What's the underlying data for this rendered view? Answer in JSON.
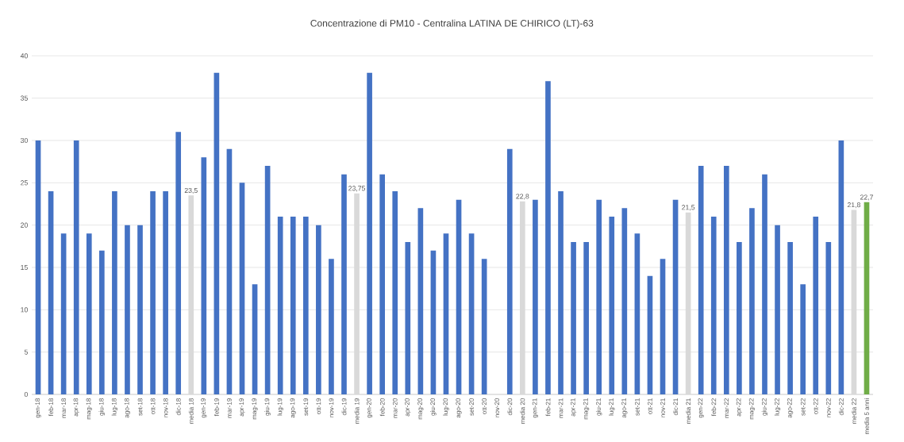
{
  "chart_data": {
    "type": "bar",
    "title": "Concentrazione di PM10 - Centralina LATINA DE CHIRICO (LT)-63",
    "categories": [
      "gen-18",
      "feb-18",
      "mar-18",
      "apr-18",
      "mag-18",
      "giu-18",
      "lug-18",
      "ago-18",
      "set-18",
      "ott-18",
      "nov-18",
      "dic-18",
      "media 18",
      "gen-19",
      "feb-19",
      "mar-19",
      "apr-19",
      "mag-19",
      "giu-19",
      "lug-19",
      "ago-19",
      "set-19",
      "ott-19",
      "nov-19",
      "dic-19",
      "media 19",
      "gen-20",
      "feb-20",
      "mar-20",
      "apr-20",
      "mag-20",
      "giu-20",
      "lug-20",
      "ago-20",
      "set-20",
      "ott-20",
      "nov-20",
      "dic-20",
      "media 20",
      "gen-21",
      "feb-21",
      "mar-21",
      "apr-21",
      "mag-21",
      "giu-21",
      "lug-21",
      "ago-21",
      "set-21",
      "ott-21",
      "nov-21",
      "dic-21",
      "media 21",
      "gen-22",
      "feb-22",
      "mar-22",
      "apr-22",
      "mag-22",
      "giu-22",
      "lug-22",
      "ago-22",
      "set-22",
      "ott-22",
      "nov-22",
      "dic-22",
      "media 22",
      "media 5 anni"
    ],
    "values": [
      30,
      24,
      19,
      30,
      19,
      17,
      24,
      20,
      20,
      24,
      24,
      31,
      23.5,
      28,
      38,
      29,
      25,
      13,
      27,
      21,
      21,
      21,
      20,
      16,
      26,
      23.75,
      38,
      26,
      24,
      18,
      22,
      17,
      19,
      23,
      19,
      16,
      null,
      29,
      22.8,
      23,
      37,
      24,
      18,
      18,
      23,
      21,
      22,
      19,
      14,
      16,
      23,
      21.5,
      27,
      21,
      27,
      18,
      22,
      26,
      20,
      18,
      13,
      21,
      18,
      30,
      21.8,
      22.7
    ],
    "colors": [
      "#4472c4",
      "#4472c4",
      "#4472c4",
      "#4472c4",
      "#4472c4",
      "#4472c4",
      "#4472c4",
      "#4472c4",
      "#4472c4",
      "#4472c4",
      "#4472c4",
      "#4472c4",
      "#d9d9d9",
      "#4472c4",
      "#4472c4",
      "#4472c4",
      "#4472c4",
      "#4472c4",
      "#4472c4",
      "#4472c4",
      "#4472c4",
      "#4472c4",
      "#4472c4",
      "#4472c4",
      "#4472c4",
      "#d9d9d9",
      "#4472c4",
      "#4472c4",
      "#4472c4",
      "#4472c4",
      "#4472c4",
      "#4472c4",
      "#4472c4",
      "#4472c4",
      "#4472c4",
      "#4472c4",
      "#4472c4",
      "#4472c4",
      "#d9d9d9",
      "#4472c4",
      "#4472c4",
      "#4472c4",
      "#4472c4",
      "#4472c4",
      "#4472c4",
      "#4472c4",
      "#4472c4",
      "#4472c4",
      "#4472c4",
      "#4472c4",
      "#4472c4",
      "#d9d9d9",
      "#4472c4",
      "#4472c4",
      "#4472c4",
      "#4472c4",
      "#4472c4",
      "#4472c4",
      "#4472c4",
      "#4472c4",
      "#4472c4",
      "#4472c4",
      "#4472c4",
      "#4472c4",
      "#d9d9d9",
      "#70ad47"
    ],
    "value_labels": [
      null,
      null,
      null,
      null,
      null,
      null,
      null,
      null,
      null,
      null,
      null,
      null,
      "23,5",
      null,
      null,
      null,
      null,
      null,
      null,
      null,
      null,
      null,
      null,
      null,
      null,
      "23,75",
      null,
      null,
      null,
      null,
      null,
      null,
      null,
      null,
      null,
      null,
      null,
      null,
      "22,8",
      null,
      null,
      null,
      null,
      null,
      null,
      null,
      null,
      null,
      null,
      null,
      null,
      "21,5",
      null,
      null,
      null,
      null,
      null,
      null,
      null,
      null,
      null,
      null,
      null,
      null,
      "21,8",
      "22,7"
    ],
    "ylim": [
      0,
      40
    ],
    "yticks": [
      0,
      5,
      10,
      15,
      20,
      25,
      30,
      35,
      40
    ],
    "grid": "y"
  }
}
